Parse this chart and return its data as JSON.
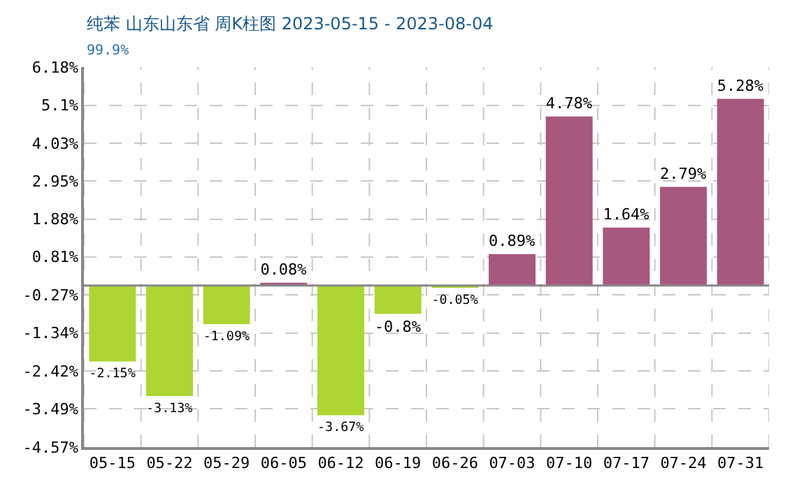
{
  "chart_data": {
    "type": "bar",
    "title": "纯苯 山东山东省 周K柱图 2023-05-15 - 2023-08-04",
    "subtitle": "99.9%",
    "categories": [
      "05-15",
      "05-22",
      "05-29",
      "06-05",
      "06-12",
      "06-19",
      "06-26",
      "07-03",
      "07-10",
      "07-17",
      "07-24",
      "07-31"
    ],
    "values": [
      -2.15,
      -3.13,
      -1.09,
      0.08,
      -3.67,
      -0.8,
      -0.05,
      0.89,
      4.78,
      1.64,
      2.79,
      5.28
    ],
    "colors": [
      "#add633",
      "#add633",
      "#add633",
      "#a8577e",
      "#add633",
      "#add633",
      "#add633",
      "#a8577e",
      "#a8577e",
      "#a8577e",
      "#a8577e",
      "#a8577e"
    ],
    "value_labels": [
      "-2.15%",
      "-3.13%",
      "-1.09%",
      "0.08%",
      "-3.67%",
      "-0.8%",
      "-0.05%",
      "0.89%",
      "4.78%",
      "1.64%",
      "2.79%",
      "5.28%"
    ],
    "ylim": [
      -4.57,
      6.18
    ],
    "yticks": [
      {
        "value": -4.57,
        "label": "-4.57%"
      },
      {
        "value": -3.49,
        "label": "-3.49%"
      },
      {
        "value": -2.42,
        "label": "-2.42%"
      },
      {
        "value": -1.34,
        "label": "-1.34%"
      },
      {
        "value": -0.27,
        "label": "-0.27%"
      },
      {
        "value": 0.81,
        "label": "0.81%"
      },
      {
        "value": 1.88,
        "label": "1.88%"
      },
      {
        "value": 2.95,
        "label": "2.95%"
      },
      {
        "value": 4.03,
        "label": "4.03%"
      },
      {
        "value": 5.1,
        "label": "5.1%"
      },
      {
        "value": 6.18,
        "label": "6.18%"
      }
    ],
    "ref_lines": [
      {
        "axis": "y",
        "value": 0,
        "color": "#888888"
      }
    ],
    "grid": true,
    "legend": false
  }
}
